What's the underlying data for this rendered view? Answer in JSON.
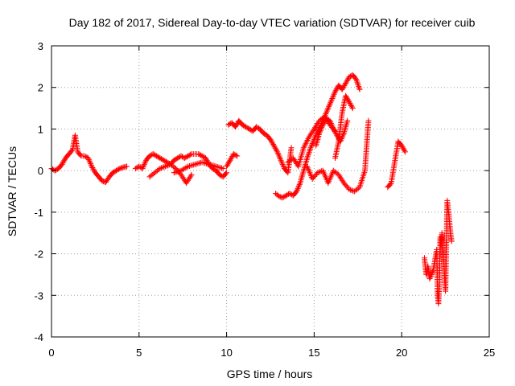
{
  "chart_data": {
    "type": "scatter",
    "title": "Day 182 of 2017, Sidereal Day-to-day VTEC variation (SDTVAR) for receiver cuib",
    "xlabel": "GPS time / hours",
    "ylabel": "SDTVAR / TECUs",
    "xlim": [
      0,
      25
    ],
    "ylim": [
      -4,
      3
    ],
    "xticks": [
      0,
      5,
      10,
      15,
      20,
      25
    ],
    "yticks": [
      -4,
      -3,
      -2,
      -1,
      0,
      1,
      2,
      3
    ],
    "grid": true,
    "marker": "+",
    "color": "#ff0000",
    "series": [
      {
        "name": "SDTVAR",
        "segments": [
          {
            "x": [
              0.0,
              0.2,
              0.4,
              0.6,
              0.8,
              1.0,
              1.2,
              1.35,
              1.5,
              1.7,
              1.9,
              2.1,
              2.3,
              2.5,
              2.7,
              2.9,
              3.1,
              3.3,
              3.5,
              3.7,
              3.9,
              4.1,
              4.3
            ],
            "y": [
              0.05,
              0.0,
              0.05,
              0.15,
              0.3,
              0.4,
              0.5,
              0.85,
              0.45,
              0.35,
              0.35,
              0.3,
              0.1,
              -0.05,
              -0.15,
              -0.25,
              -0.28,
              -0.15,
              -0.05,
              0.0,
              0.05,
              0.08,
              0.1
            ]
          },
          {
            "x": [
              4.8,
              5.0,
              5.2,
              5.4,
              5.6,
              5.8,
              6.0,
              6.2,
              6.4,
              6.6,
              6.8,
              7.0,
              7.2,
              7.4,
              7.6,
              7.8,
              8.0,
              8.2,
              8.4,
              8.6,
              8.8,
              9.0,
              9.2,
              9.4,
              9.6,
              9.8,
              10.0
            ],
            "y": [
              0.05,
              0.1,
              0.05,
              0.25,
              0.35,
              0.4,
              0.35,
              0.3,
              0.25,
              0.2,
              0.15,
              0.25,
              0.3,
              0.35,
              0.3,
              0.35,
              0.4,
              0.4,
              0.4,
              0.35,
              0.3,
              0.15,
              0.05,
              0.0,
              -0.1,
              -0.15,
              -0.05
            ]
          },
          {
            "x": [
              5.6,
              5.9,
              6.2,
              6.5,
              6.8,
              7.1,
              7.4,
              7.7,
              8.0
            ],
            "y": [
              -0.15,
              -0.05,
              0.05,
              0.1,
              0.15,
              0.05,
              -0.1,
              -0.3,
              -0.1
            ]
          },
          {
            "x": [
              7.0,
              7.4,
              7.8,
              8.2,
              8.6,
              9.0,
              9.4,
              9.8
            ],
            "y": [
              -0.05,
              0.0,
              0.1,
              0.15,
              0.2,
              0.15,
              0.1,
              0.05
            ]
          },
          {
            "x": [
              10.0,
              10.2,
              10.4,
              10.6
            ],
            "y": [
              0.1,
              0.25,
              0.4,
              0.35
            ]
          },
          {
            "x": [
              10.1,
              10.3,
              10.5,
              10.7,
              10.9,
              11.1,
              11.3,
              11.5,
              11.7,
              11.9,
              12.1,
              12.3,
              12.5,
              12.7,
              12.9,
              13.1,
              13.3,
              13.5,
              13.7
            ],
            "y": [
              1.1,
              1.15,
              1.05,
              1.2,
              1.1,
              1.05,
              1.0,
              0.95,
              1.05,
              1.0,
              0.9,
              0.85,
              0.75,
              0.6,
              0.45,
              0.25,
              0.05,
              -0.05,
              0.55
            ]
          },
          {
            "x": [
              12.8,
              13.0,
              13.2,
              13.4,
              13.6,
              13.8,
              14.0,
              14.2,
              14.4,
              14.6,
              14.8,
              15.0,
              15.2,
              15.4,
              15.6,
              15.8,
              16.0,
              16.2,
              16.4,
              16.6,
              16.8,
              17.0,
              17.2,
              17.4,
              17.6
            ],
            "y": [
              -0.55,
              -0.62,
              -0.65,
              -0.6,
              -0.55,
              -0.6,
              -0.5,
              -0.3,
              0.0,
              0.3,
              0.55,
              0.75,
              0.95,
              1.1,
              1.3,
              1.5,
              1.7,
              1.9,
              2.05,
              1.95,
              2.1,
              2.25,
              2.3,
              2.2,
              1.95
            ]
          },
          {
            "x": [
              13.5,
              13.8,
              14.1,
              14.4,
              14.7,
              15.0,
              15.3,
              15.6,
              15.9,
              16.2
            ],
            "y": [
              0.2,
              0.3,
              0.1,
              0.55,
              0.8,
              1.0,
              1.2,
              1.3,
              1.1,
              0.95
            ]
          },
          {
            "x": [
              14.6,
              14.9,
              15.2,
              15.5,
              15.8,
              16.1,
              16.4,
              16.7,
              17.0,
              17.3,
              17.6,
              17.9,
              18.1
            ],
            "y": [
              0.1,
              -0.2,
              -0.05,
              0.0,
              -0.3,
              0.0,
              -0.1,
              -0.3,
              -0.45,
              -0.5,
              -0.4,
              0.0,
              1.2
            ]
          },
          {
            "x": [
              15.1,
              15.3,
              15.5,
              15.7,
              15.9,
              16.1,
              16.3,
              16.5,
              16.7,
              16.9
            ],
            "y": [
              0.6,
              0.9,
              1.1,
              1.25,
              1.2,
              1.0,
              0.85,
              0.7,
              0.9,
              1.2
            ]
          },
          {
            "x": [
              16.2,
              16.4,
              16.6,
              16.8,
              17.0,
              17.2
            ],
            "y": [
              0.3,
              0.7,
              1.4,
              1.8,
              1.65,
              1.5
            ]
          },
          {
            "x": [
              19.2,
              19.4,
              19.6,
              19.8,
              20.0,
              20.2
            ],
            "y": [
              -0.4,
              -0.3,
              0.2,
              0.7,
              0.6,
              0.45
            ]
          },
          {
            "x": [
              21.3,
              21.4,
              21.5,
              21.6,
              21.8,
              22.0,
              22.05,
              22.1,
              22.15,
              22.2,
              22.25,
              22.3,
              22.5,
              22.6,
              22.7,
              22.8,
              22.85
            ],
            "y": [
              -2.1,
              -2.5,
              -2.3,
              -2.6,
              -2.4,
              -1.9,
              -3.0,
              -3.2,
              -2.7,
              -1.6,
              -1.8,
              -1.5,
              -2.9,
              -0.72,
              -1.1,
              -1.55,
              -1.7
            ]
          }
        ]
      }
    ]
  }
}
